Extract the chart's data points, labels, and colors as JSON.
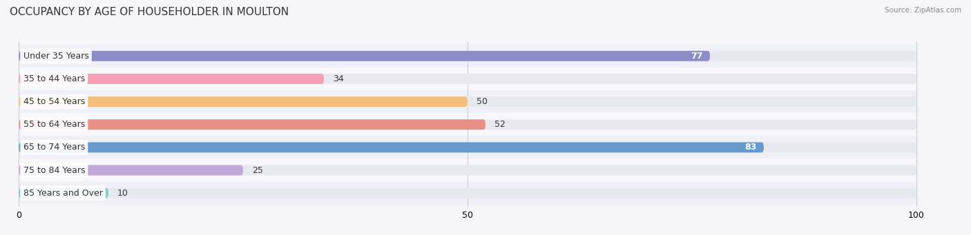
{
  "title": "OCCUPANCY BY AGE OF HOUSEHOLDER IN MOULTON",
  "source": "Source: ZipAtlas.com",
  "categories": [
    "Under 35 Years",
    "35 to 44 Years",
    "45 to 54 Years",
    "55 to 64 Years",
    "65 to 74 Years",
    "75 to 84 Years",
    "85 Years and Over"
  ],
  "values": [
    77,
    34,
    50,
    52,
    83,
    25,
    10
  ],
  "bar_colors": [
    "#8b8cc8",
    "#f5a0b5",
    "#f5be7a",
    "#e89088",
    "#6699cc",
    "#c0a8d8",
    "#88cccc"
  ],
  "bar_bg_color": "#e8e8f0",
  "row_bg_colors": [
    "#f0f0f8",
    "#f8f8fc"
  ],
  "xlim": [
    0,
    100
  ],
  "xticks": [
    0,
    50,
    100
  ],
  "title_fontsize": 11,
  "label_fontsize": 9,
  "value_fontsize": 9,
  "bar_height": 0.45,
  "background_color": "#f5f5fa"
}
